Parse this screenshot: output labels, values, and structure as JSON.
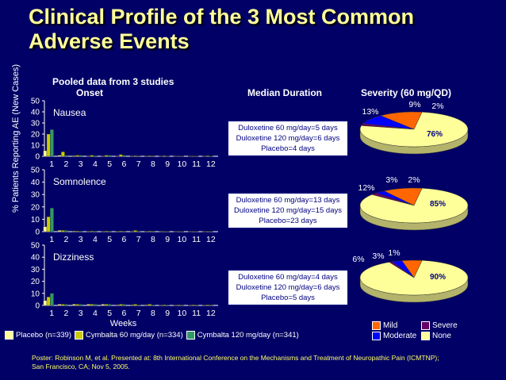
{
  "title_line1": "Clinical Profile of the 3 Most Common",
  "title_line2": "Adverse Events",
  "pooled_label": "Pooled data from 3 studies",
  "onset_label": "Onset",
  "median_label": "Median Duration",
  "severity_label": "Severity (60 mg/QD)",
  "y_axis_label": "% Patients Reporting AE (New Cases)",
  "colors": {
    "background": "#000066",
    "title": "#ffff99",
    "placebo": "#ffff99",
    "cymbalta60": "#cccc00",
    "cymbalta120": "#339966",
    "mild": "#ff6600",
    "moderate": "#0000ff",
    "severe": "#660066",
    "none": "#ffff99"
  },
  "durations": [
    {
      "line1": "Duloxetine 60 mg/day=5 days",
      "line2": "Duloxetine 120 mg/day=6 days",
      "line3": "Placebo=4 days"
    },
    {
      "line1": "Duloxetine 60 mg/day=13 days",
      "line2": "Duloxetine 120 mg/day=15 days",
      "line3": "Placebo=23 days"
    },
    {
      "line1": "Duloxetine 60 mg/day=4 days",
      "line2": "Duloxetine 120 mg/day=6 days",
      "line3": "Placebo=5 days"
    }
  ],
  "legend": {
    "placebo": "Placebo (n=339)",
    "cymbalta60": "Cymbalta 60 mg/day (n=334)",
    "cymbalta120": "Cymbalta 120 mg/day (n=341)"
  },
  "severity_legend": {
    "mild": "Mild",
    "moderate": "Moderate",
    "severe": "Severe",
    "none": "None"
  },
  "footnote_line1": "Poster: Robinson M, et al. Presented at: 8th International Conference on the Mechanisms and Treatment of Neuropathic Pain (ICMTNP);",
  "footnote_line2": "San Francisco, CA; Nov 5, 2005.",
  "chart_data": [
    {
      "type": "bar",
      "title": "Nausea",
      "xlabel": "",
      "ylabel": "% Patients Reporting AE (New Cases)",
      "ylim": [
        0,
        50
      ],
      "yticks": [
        0,
        10,
        20,
        30,
        40,
        50
      ],
      "categories": [
        "1",
        "2",
        "3",
        "4",
        "5",
        "6",
        "7",
        "8",
        "9",
        "10",
        "11",
        "12"
      ],
      "series": [
        {
          "name": "Placebo (n=339)",
          "values": [
            5,
            1,
            0.5,
            0.3,
            0.3,
            0.3,
            0.3,
            0.3,
            0.2,
            0.2,
            0.2,
            0.2
          ]
        },
        {
          "name": "Cymbalta 60 mg/day (n=334)",
          "values": [
            20,
            4,
            1,
            1,
            1,
            1.5,
            0.5,
            0.5,
            0.5,
            0.3,
            0.3,
            0.5
          ]
        },
        {
          "name": "Cymbalta 120 mg/day (n=341)",
          "values": [
            24,
            1,
            1,
            0.5,
            1,
            1,
            0.5,
            0.5,
            0.3,
            0.3,
            0.3,
            0.3
          ]
        }
      ]
    },
    {
      "type": "bar",
      "title": "Somnolence",
      "xlabel": "",
      "ylabel": "% Patients Reporting AE (New Cases)",
      "ylim": [
        0,
        50
      ],
      "yticks": [
        0,
        10,
        20,
        30,
        40,
        50
      ],
      "categories": [
        "1",
        "2",
        "3",
        "4",
        "5",
        "6",
        "7",
        "8",
        "9",
        "10",
        "11",
        "12"
      ],
      "series": [
        {
          "name": "Placebo (n=339)",
          "values": [
            4,
            1,
            0.5,
            0.3,
            0.3,
            0.3,
            0.3,
            0.3,
            0.3,
            0.2,
            0.2,
            0.2
          ]
        },
        {
          "name": "Cymbalta 60 mg/day (n=334)",
          "values": [
            12,
            1,
            0.5,
            0.5,
            0.5,
            0.5,
            1,
            0.5,
            0.3,
            0.3,
            0.3,
            0.3
          ]
        },
        {
          "name": "Cymbalta 120 mg/day (n=341)",
          "values": [
            19,
            1,
            0.5,
            0.5,
            0.5,
            0.5,
            0.5,
            0.5,
            0.3,
            0.3,
            0.3,
            0.3
          ]
        }
      ]
    },
    {
      "type": "bar",
      "title": "Dizziness",
      "xlabel": "Weeks",
      "ylabel": "% Patients Reporting AE (New Cases)",
      "ylim": [
        0,
        50
      ],
      "yticks": [
        0,
        10,
        20,
        30,
        40,
        50
      ],
      "categories": [
        "1",
        "2",
        "3",
        "4",
        "5",
        "6",
        "7",
        "8",
        "9",
        "10",
        "11",
        "12"
      ],
      "series": [
        {
          "name": "Placebo (n=339)",
          "values": [
            4,
            1,
            1,
            1,
            1,
            0.5,
            0.5,
            0.5,
            0.3,
            0.3,
            0.3,
            0.3
          ]
        },
        {
          "name": "Cymbalta 60 mg/day (n=334)",
          "values": [
            7,
            1,
            1,
            1,
            1,
            1,
            1,
            1,
            0.5,
            0.5,
            0.5,
            0.5
          ]
        },
        {
          "name": "Cymbalta 120 mg/day (n=341)",
          "values": [
            10,
            1,
            1,
            1,
            1,
            1,
            0.5,
            0.5,
            0.5,
            0.5,
            0.5,
            0.5
          ]
        }
      ]
    },
    {
      "type": "pie",
      "title": "Severity (60 mg/QD) - Nausea",
      "categories": [
        "Mild",
        "Moderate",
        "Severe",
        "None"
      ],
      "values": [
        13,
        9,
        2,
        76
      ],
      "labels": [
        "13%",
        "9%",
        "2%",
        "76%"
      ]
    },
    {
      "type": "pie",
      "title": "Severity (60 mg/QD) - Somnolence",
      "categories": [
        "Mild",
        "Moderate",
        "Severe",
        "None"
      ],
      "values": [
        12,
        3,
        2,
        85
      ],
      "labels": [
        "12%",
        "3%",
        "2%",
        "85%"
      ]
    },
    {
      "type": "pie",
      "title": "Severity (60 mg/QD) - Dizziness",
      "categories": [
        "Mild",
        "Moderate",
        "Severe",
        "None"
      ],
      "values": [
        6,
        3,
        1,
        90
      ],
      "labels": [
        "6%",
        "3%",
        "1%",
        "90%"
      ]
    }
  ]
}
